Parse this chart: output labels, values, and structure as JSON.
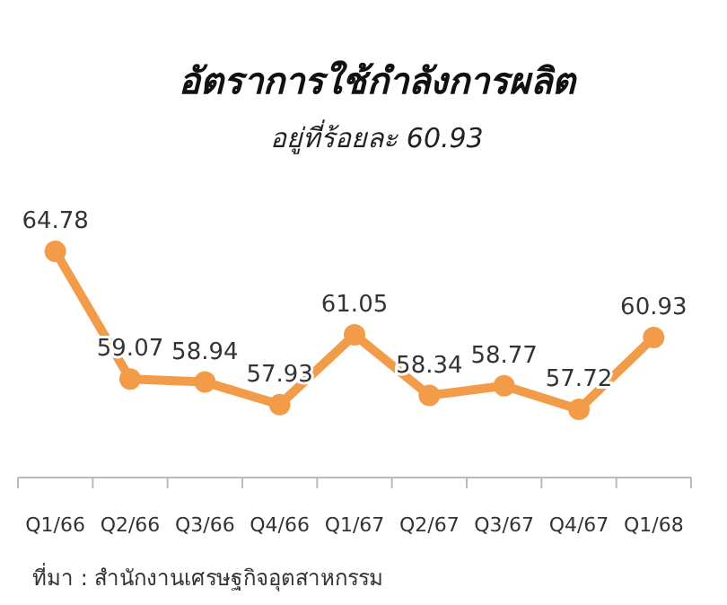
{
  "chart_data": {
    "type": "line",
    "title": "อัตราการใช้กำลังการผลิต",
    "subtitle": "อยู่ที่ร้อยละ 60.93",
    "categories": [
      "Q1/66",
      "Q2/66",
      "Q3/66",
      "Q4/66",
      "Q1/67",
      "Q2/67",
      "Q3/67",
      "Q4/67",
      "Q1/68"
    ],
    "series": [
      {
        "color": "#f29c4a",
        "values": [
          64.78,
          59.07,
          58.94,
          57.93,
          61.05,
          58.34,
          58.77,
          57.72,
          60.93
        ]
      }
    ],
    "data_labels": true,
    "marker": "circle",
    "line_style": "solid",
    "annotations": [
      "ที่มา : สำนักงานเศรษฐกิจอุตสาหกรรม"
    ]
  }
}
